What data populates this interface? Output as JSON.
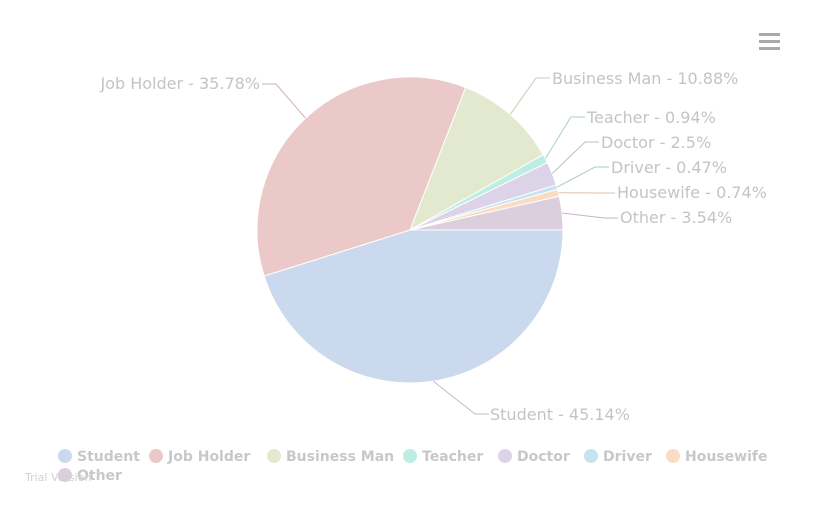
{
  "chart_data": {
    "type": "pie",
    "title": "",
    "legend_position": "bottom-left",
    "slices": [
      {
        "name": "Student",
        "label": "Student - 45.14%",
        "value": 45.14,
        "color": "#cad9ee"
      },
      {
        "name": "Job Holder",
        "label": "Job Holder - 35.78%",
        "value": 35.78,
        "color": "#ebc9c9"
      },
      {
        "name": "Business Man",
        "label": "Business Man - 10.88%",
        "value": 10.88,
        "color": "#e3e9ce"
      },
      {
        "name": "Teacher",
        "label": "Teacher - 0.94%",
        "value": 0.94,
        "color": "#bdeee4"
      },
      {
        "name": "Doctor",
        "label": "Doctor - 2.5%",
        "value": 2.5,
        "color": "#ddd3e8"
      },
      {
        "name": "Driver",
        "label": "Driver - 0.47%",
        "value": 0.47,
        "color": "#c6e3ef"
      },
      {
        "name": "Housewife",
        "label": "Housewife - 0.74%",
        "value": 0.74,
        "color": "#fbdcc2"
      },
      {
        "name": "Other",
        "label": "Other - 3.54%",
        "value": 3.54,
        "color": "#dccfdd"
      }
    ]
  },
  "watermark": "Trial Version",
  "menu_icon": "hamburger-menu-icon"
}
